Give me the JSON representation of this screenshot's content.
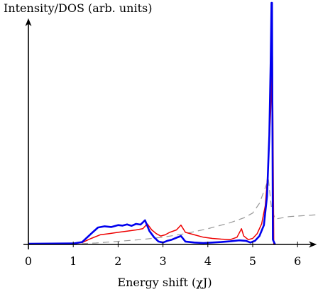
{
  "chart_data": {
    "type": "line",
    "title": "",
    "xlabel": "Energy shift (χJ)",
    "ylabel": "Intensity/DOS (arb. units)",
    "xlim": [
      0,
      6.5
    ],
    "ylim": [
      0,
      1
    ],
    "x_ticks": [
      0,
      1,
      2,
      3,
      4,
      5,
      6
    ],
    "grid": false,
    "legend": "none",
    "series": [
      {
        "color": "#0000ee",
        "points": [
          [
            0,
            0.003
          ],
          [
            1.0,
            0.004
          ],
          [
            1.2,
            0.01
          ],
          [
            1.4,
            0.045
          ],
          [
            1.55,
            0.07
          ],
          [
            1.7,
            0.075
          ],
          [
            1.85,
            0.072
          ],
          [
            2.0,
            0.08
          ],
          [
            2.1,
            0.078
          ],
          [
            2.2,
            0.083
          ],
          [
            2.3,
            0.077
          ],
          [
            2.4,
            0.085
          ],
          [
            2.5,
            0.082
          ],
          [
            2.6,
            0.1
          ],
          [
            2.7,
            0.055
          ],
          [
            2.8,
            0.03
          ],
          [
            2.9,
            0.012
          ],
          [
            3.0,
            0.008
          ],
          [
            3.1,
            0.015
          ],
          [
            3.2,
            0.02
          ],
          [
            3.3,
            0.028
          ],
          [
            3.4,
            0.035
          ],
          [
            3.5,
            0.012
          ],
          [
            3.7,
            0.008
          ],
          [
            3.9,
            0.006
          ],
          [
            4.1,
            0.008
          ],
          [
            4.3,
            0.01
          ],
          [
            4.5,
            0.013
          ],
          [
            4.7,
            0.017
          ],
          [
            4.85,
            0.015
          ],
          [
            4.95,
            0.008
          ],
          [
            5.05,
            0.015
          ],
          [
            5.15,
            0.035
          ],
          [
            5.25,
            0.08
          ],
          [
            5.32,
            0.2
          ],
          [
            5.37,
            0.45
          ],
          [
            5.4,
            0.75
          ],
          [
            5.42,
            1.0
          ],
          [
            5.43,
            1.0
          ],
          [
            5.45,
            0.02
          ],
          [
            5.5,
            0.0
          ]
        ]
      },
      {
        "color": "#ee0000",
        "points": [
          [
            0,
            0.001
          ],
          [
            1.0,
            0.003
          ],
          [
            1.2,
            0.008
          ],
          [
            1.4,
            0.025
          ],
          [
            1.6,
            0.04
          ],
          [
            1.8,
            0.045
          ],
          [
            2.0,
            0.05
          ],
          [
            2.2,
            0.055
          ],
          [
            2.4,
            0.06
          ],
          [
            2.55,
            0.065
          ],
          [
            2.65,
            0.085
          ],
          [
            2.75,
            0.06
          ],
          [
            2.85,
            0.045
          ],
          [
            2.95,
            0.035
          ],
          [
            3.05,
            0.04
          ],
          [
            3.15,
            0.05
          ],
          [
            3.3,
            0.06
          ],
          [
            3.4,
            0.08
          ],
          [
            3.5,
            0.05
          ],
          [
            3.7,
            0.04
          ],
          [
            3.9,
            0.03
          ],
          [
            4.1,
            0.025
          ],
          [
            4.3,
            0.022
          ],
          [
            4.5,
            0.02
          ],
          [
            4.65,
            0.03
          ],
          [
            4.75,
            0.065
          ],
          [
            4.8,
            0.035
          ],
          [
            4.9,
            0.02
          ],
          [
            5.0,
            0.025
          ],
          [
            5.1,
            0.045
          ],
          [
            5.2,
            0.085
          ],
          [
            5.28,
            0.16
          ],
          [
            5.34,
            0.3
          ],
          [
            5.4,
            0.55
          ],
          [
            5.44,
            0.78
          ],
          [
            5.46,
            0.25
          ],
          [
            5.47,
            0.0
          ],
          [
            5.5,
            0.0
          ]
        ]
      },
      {
        "color": "#999999",
        "dashed": true,
        "points": [
          [
            0,
            0.0
          ],
          [
            1.0,
            0.002
          ],
          [
            1.5,
            0.006
          ],
          [
            2.0,
            0.013
          ],
          [
            2.5,
            0.02
          ],
          [
            3.0,
            0.03
          ],
          [
            3.5,
            0.045
          ],
          [
            4.0,
            0.065
          ],
          [
            4.5,
            0.09
          ],
          [
            4.8,
            0.11
          ],
          [
            5.0,
            0.13
          ],
          [
            5.15,
            0.17
          ],
          [
            5.25,
            0.22
          ],
          [
            5.35,
            0.27
          ],
          [
            5.42,
            0.15
          ],
          [
            5.5,
            0.105
          ],
          [
            5.8,
            0.115
          ],
          [
            6.2,
            0.12
          ],
          [
            6.6,
            0.125
          ]
        ]
      }
    ]
  }
}
